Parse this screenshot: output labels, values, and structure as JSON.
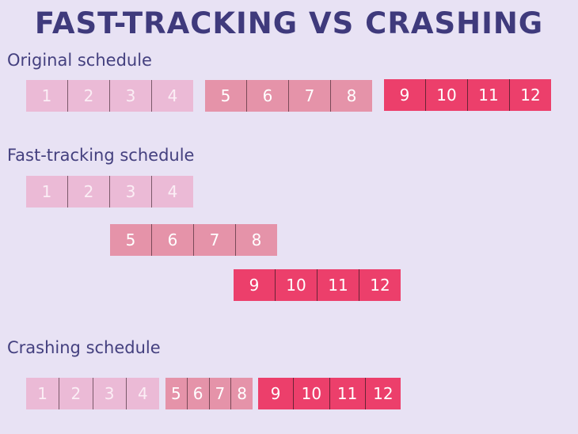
{
  "title": "FAST-TRACKING VS CRASHING",
  "colors": {
    "background": "#e8e2f4",
    "title": "#3f3a7c",
    "phase1": "#ebbad6",
    "phase2": "#e593a9",
    "phase3": "#ec3f6b"
  },
  "original": {
    "label": "Original schedule",
    "phase1": [
      "1",
      "2",
      "3",
      "4"
    ],
    "phase2": [
      "5",
      "6",
      "7",
      "8"
    ],
    "phase3": [
      "9",
      "10",
      "11",
      "12"
    ]
  },
  "fast_tracking": {
    "label": "Fast-tracking schedule",
    "phase1": [
      "1",
      "2",
      "3",
      "4"
    ],
    "phase2": [
      "5",
      "6",
      "7",
      "8"
    ],
    "phase3": [
      "9",
      "10",
      "11",
      "12"
    ]
  },
  "crashing": {
    "label": "Crashing schedule",
    "phase1": [
      "1",
      "2",
      "3",
      "4"
    ],
    "phase2": [
      "5",
      "6",
      "7",
      "8"
    ],
    "phase3": [
      "9",
      "10",
      "11",
      "12"
    ]
  }
}
